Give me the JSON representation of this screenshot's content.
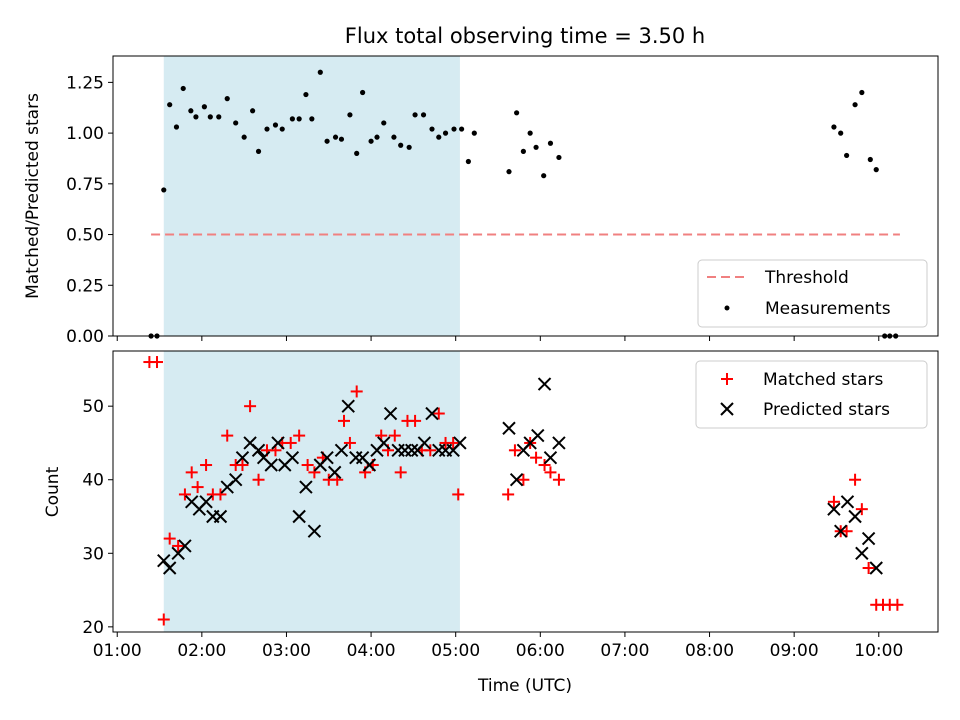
{
  "chart_data": [
    {
      "type": "scatter",
      "title": "Flux total observing time = 3.50 h",
      "ylabel": "Matched/Predicted stars",
      "xlabel": "",
      "x_unit": "hours (UTC)",
      "xlim": [
        0.95,
        10.7
      ],
      "ylim": [
        0,
        1.38
      ],
      "yticks": [
        0.0,
        0.25,
        0.5,
        0.75,
        1.0,
        1.25
      ],
      "ytick_labels": [
        "0.00",
        "0.25",
        "0.50",
        "0.75",
        "1.00",
        "1.25"
      ],
      "highlight_span": [
        1.55,
        5.05
      ],
      "threshold": {
        "name": "Threshold",
        "value": 0.5,
        "x": [
          1.4,
          10.25
        ],
        "color": "#f08080"
      },
      "legend": {
        "placement": "lower-right",
        "entries": [
          "Threshold",
          "Measurements"
        ]
      },
      "series": [
        {
          "name": "Measurements",
          "color": "#000000",
          "points": [
            [
              1.4,
              0.0
            ],
            [
              1.47,
              0.0
            ],
            [
              1.55,
              0.72
            ],
            [
              1.62,
              1.14
            ],
            [
              1.7,
              1.03
            ],
            [
              1.78,
              1.22
            ],
            [
              1.87,
              1.11
            ],
            [
              1.93,
              1.08
            ],
            [
              2.03,
              1.13
            ],
            [
              2.1,
              1.08
            ],
            [
              2.2,
              1.08
            ],
            [
              2.3,
              1.17
            ],
            [
              2.4,
              1.05
            ],
            [
              2.5,
              0.98
            ],
            [
              2.6,
              1.11
            ],
            [
              2.67,
              0.91
            ],
            [
              2.77,
              1.02
            ],
            [
              2.87,
              1.04
            ],
            [
              2.95,
              1.02
            ],
            [
              3.07,
              1.07
            ],
            [
              3.15,
              1.07
            ],
            [
              3.23,
              1.19
            ],
            [
              3.3,
              1.07
            ],
            [
              3.4,
              1.3
            ],
            [
              3.48,
              0.96
            ],
            [
              3.58,
              0.98
            ],
            [
              3.65,
              0.97
            ],
            [
              3.75,
              1.09
            ],
            [
              3.83,
              0.9
            ],
            [
              3.9,
              1.2
            ],
            [
              4.0,
              0.96
            ],
            [
              4.07,
              0.98
            ],
            [
              4.15,
              1.05
            ],
            [
              4.27,
              0.98
            ],
            [
              4.35,
              0.94
            ],
            [
              4.45,
              0.93
            ],
            [
              4.52,
              1.09
            ],
            [
              4.62,
              1.09
            ],
            [
              4.72,
              1.02
            ],
            [
              4.8,
              0.98
            ],
            [
              4.88,
              1.0
            ],
            [
              4.98,
              1.02
            ],
            [
              5.07,
              1.02
            ],
            [
              5.15,
              0.86
            ],
            [
              5.22,
              1.0
            ],
            [
              5.63,
              0.81
            ],
            [
              5.72,
              1.1
            ],
            [
              5.8,
              0.91
            ],
            [
              5.88,
              1.0
            ],
            [
              5.95,
              0.93
            ],
            [
              6.04,
              0.79
            ],
            [
              6.12,
              0.95
            ],
            [
              6.22,
              0.88
            ],
            [
              9.47,
              1.03
            ],
            [
              9.55,
              1.0
            ],
            [
              9.62,
              0.89
            ],
            [
              9.72,
              1.14
            ],
            [
              9.8,
              1.2
            ],
            [
              9.9,
              0.87
            ],
            [
              9.97,
              0.82
            ],
            [
              10.07,
              0.0
            ],
            [
              10.13,
              0.0
            ],
            [
              10.2,
              0.0
            ]
          ]
        }
      ]
    },
    {
      "type": "scatter",
      "title": "",
      "ylabel": "Count",
      "xlabel": "Time (UTC)",
      "x_unit": "hours (UTC)",
      "xlim": [
        0.95,
        10.7
      ],
      "ylim": [
        19.3,
        57.5
      ],
      "yticks": [
        20,
        30,
        40,
        50
      ],
      "ytick_labels": [
        "20",
        "30",
        "40",
        "50"
      ],
      "xticks": [
        1,
        2,
        3,
        4,
        5,
        6,
        7,
        8,
        9,
        10
      ],
      "xtick_labels": [
        "01:00",
        "02:00",
        "03:00",
        "04:00",
        "05:00",
        "06:00",
        "07:00",
        "08:00",
        "09:00",
        "10:00"
      ],
      "highlight_span": [
        1.55,
        5.05
      ],
      "legend": {
        "placement": "top-right",
        "entries": [
          "Matched stars",
          "Predicted stars"
        ]
      },
      "series": [
        {
          "name": "Matched stars",
          "marker": "+",
          "color": "#ff0000",
          "points": [
            [
              1.38,
              56
            ],
            [
              1.47,
              56
            ],
            [
              1.55,
              21
            ],
            [
              1.62,
              32
            ],
            [
              1.72,
              31
            ],
            [
              1.8,
              38
            ],
            [
              1.88,
              41
            ],
            [
              1.95,
              39
            ],
            [
              2.05,
              42
            ],
            [
              2.13,
              38
            ],
            [
              2.22,
              38
            ],
            [
              2.3,
              46
            ],
            [
              2.4,
              42
            ],
            [
              2.48,
              42
            ],
            [
              2.57,
              50
            ],
            [
              2.67,
              40
            ],
            [
              2.77,
              44
            ],
            [
              2.87,
              44
            ],
            [
              2.95,
              45
            ],
            [
              3.05,
              45
            ],
            [
              3.15,
              46
            ],
            [
              3.25,
              42
            ],
            [
              3.33,
              41
            ],
            [
              3.43,
              43
            ],
            [
              3.5,
              40
            ],
            [
              3.6,
              40
            ],
            [
              3.68,
              48
            ],
            [
              3.75,
              45
            ],
            [
              3.83,
              52
            ],
            [
              3.93,
              41
            ],
            [
              4.02,
              42
            ],
            [
              4.12,
              46
            ],
            [
              4.2,
              44
            ],
            [
              4.28,
              46
            ],
            [
              4.35,
              41
            ],
            [
              4.43,
              48
            ],
            [
              4.52,
              48
            ],
            [
              4.6,
              44
            ],
            [
              4.7,
              44
            ],
            [
              4.8,
              49
            ],
            [
              4.88,
              45
            ],
            [
              4.97,
              45
            ],
            [
              5.03,
              38
            ],
            [
              5.62,
              38
            ],
            [
              5.7,
              44
            ],
            [
              5.8,
              40
            ],
            [
              5.88,
              45
            ],
            [
              5.95,
              43
            ],
            [
              6.05,
              42
            ],
            [
              6.12,
              41
            ],
            [
              6.22,
              40
            ],
            [
              9.47,
              37
            ],
            [
              9.55,
              33
            ],
            [
              9.62,
              33
            ],
            [
              9.72,
              40
            ],
            [
              9.8,
              36
            ],
            [
              9.88,
              28
            ],
            [
              9.97,
              23
            ],
            [
              10.05,
              23
            ],
            [
              10.13,
              23
            ],
            [
              10.22,
              23
            ]
          ]
        },
        {
          "name": "Predicted stars",
          "marker": "x",
          "color": "#000000",
          "points": [
            [
              1.55,
              29
            ],
            [
              1.62,
              28
            ],
            [
              1.72,
              30
            ],
            [
              1.8,
              31
            ],
            [
              1.88,
              37
            ],
            [
              1.97,
              36
            ],
            [
              2.05,
              37
            ],
            [
              2.13,
              35
            ],
            [
              2.22,
              35
            ],
            [
              2.3,
              39
            ],
            [
              2.4,
              40
            ],
            [
              2.48,
              43
            ],
            [
              2.57,
              45
            ],
            [
              2.67,
              44
            ],
            [
              2.73,
              43
            ],
            [
              2.82,
              42
            ],
            [
              2.9,
              45
            ],
            [
              2.98,
              42
            ],
            [
              3.07,
              43
            ],
            [
              3.15,
              35
            ],
            [
              3.23,
              39
            ],
            [
              3.33,
              33
            ],
            [
              3.4,
              42
            ],
            [
              3.48,
              43
            ],
            [
              3.57,
              41
            ],
            [
              3.65,
              44
            ],
            [
              3.73,
              50
            ],
            [
              3.82,
              43
            ],
            [
              3.9,
              43
            ],
            [
              3.98,
              42
            ],
            [
              4.07,
              44
            ],
            [
              4.15,
              45
            ],
            [
              4.23,
              49
            ],
            [
              4.32,
              44
            ],
            [
              4.4,
              44
            ],
            [
              4.48,
              44
            ],
            [
              4.55,
              44
            ],
            [
              4.63,
              45
            ],
            [
              4.72,
              49
            ],
            [
              4.8,
              44
            ],
            [
              4.88,
              44
            ],
            [
              4.97,
              44
            ],
            [
              5.05,
              45
            ],
            [
              5.63,
              47
            ],
            [
              5.72,
              40
            ],
            [
              5.8,
              44
            ],
            [
              5.88,
              45
            ],
            [
              5.97,
              46
            ],
            [
              6.05,
              53
            ],
            [
              6.12,
              43
            ],
            [
              6.22,
              45
            ],
            [
              9.47,
              36
            ],
            [
              9.55,
              33
            ],
            [
              9.63,
              37
            ],
            [
              9.72,
              35
            ],
            [
              9.8,
              30
            ],
            [
              9.88,
              32
            ],
            [
              9.97,
              28
            ]
          ]
        }
      ]
    }
  ]
}
